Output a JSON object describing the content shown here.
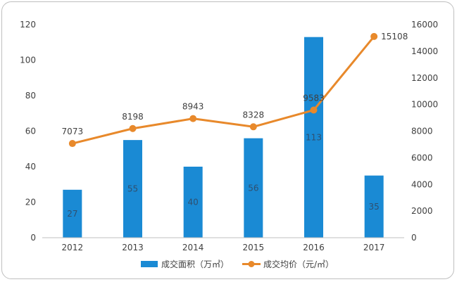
{
  "chart_data": {
    "type": "bar",
    "categories": [
      "2012",
      "2013",
      "2014",
      "2015",
      "2016",
      "2017"
    ],
    "series": [
      {
        "name": "成交面积（万㎡）",
        "type": "bar",
        "axis": "left",
        "values": [
          27,
          55,
          40,
          56,
          113,
          35
        ],
        "labels": [
          "27",
          "55",
          "40",
          "56",
          "113",
          "35"
        ],
        "color": "#1a8ad4"
      },
      {
        "name": "成交均价（元/㎡）",
        "type": "line",
        "axis": "right",
        "values": [
          7073,
          8198,
          8943,
          8328,
          9583,
          15108
        ],
        "labels": [
          "7073",
          "8198",
          "8943",
          "8328",
          "9583",
          "15108"
        ],
        "color": "#e8892b"
      }
    ],
    "y_left": {
      "ylim": [
        0,
        120
      ],
      "ticks": [
        "0",
        "20",
        "40",
        "60",
        "80",
        "100",
        "120"
      ]
    },
    "y_right": {
      "ylim": [
        0,
        16000
      ],
      "ticks": [
        "0",
        "2000",
        "4000",
        "6000",
        "8000",
        "10000",
        "12000",
        "14000",
        "16000"
      ]
    },
    "grid": false,
    "legend": "bottom"
  }
}
